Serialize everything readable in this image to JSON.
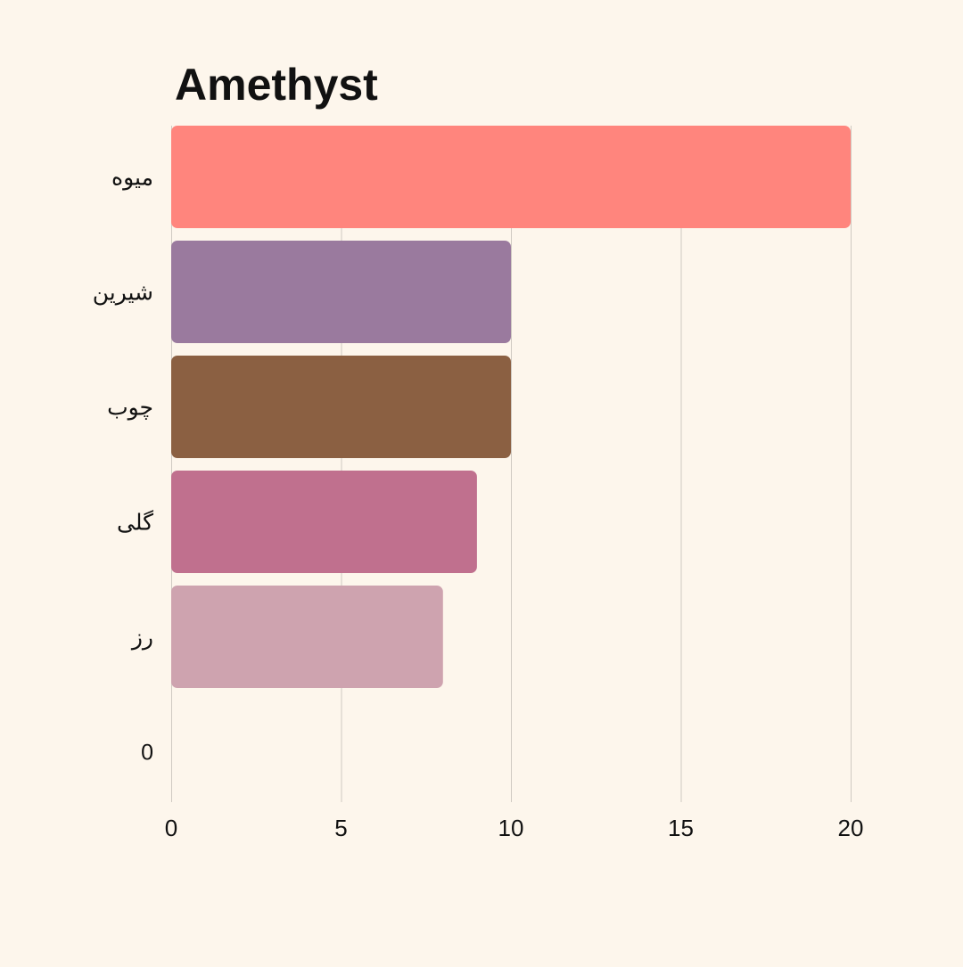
{
  "chart_data": {
    "type": "bar",
    "orientation": "horizontal",
    "title": "Amethyst",
    "xlabel": "",
    "ylabel": "",
    "categories": [
      "میوه",
      "شیرین",
      "چوب",
      "گلی",
      "رز",
      "0"
    ],
    "values": [
      20,
      10,
      10,
      9,
      8,
      0
    ],
    "colors": [
      "#ff857d",
      "#9a7a9e",
      "#8b6042",
      "#c0708e",
      "#cea3af",
      "#cea3af"
    ],
    "xlim": [
      0,
      20
    ],
    "xticks": [
      0,
      5,
      10,
      15,
      20
    ],
    "grid": "vertical",
    "legend": "none"
  },
  "colors": {
    "background": "#fdf6ec",
    "grid": "#cfcac2",
    "text": "#111111"
  }
}
